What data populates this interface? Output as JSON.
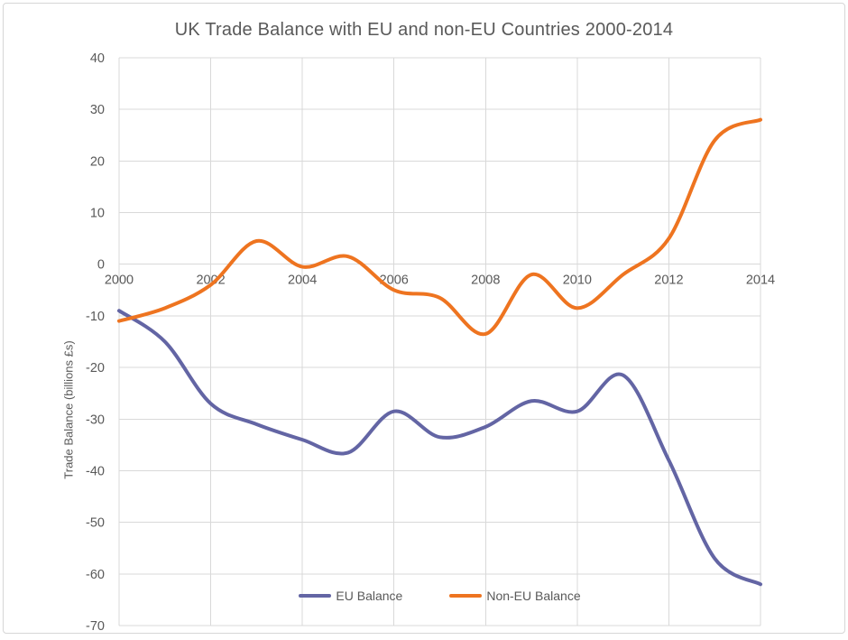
{
  "chart_data": {
    "type": "line",
    "title": "UK Trade Balance with EU and non-EU Countries 2000-2014",
    "xlabel": "",
    "ylabel": "Trade Balance (billions £s)",
    "x": [
      2000,
      2001,
      2002,
      2003,
      2004,
      2005,
      2006,
      2007,
      2008,
      2009,
      2010,
      2011,
      2012,
      2013,
      2014
    ],
    "series": [
      {
        "name": "EU Balance",
        "color": "#6365A4",
        "values": [
          -9,
          -15,
          -27,
          -31,
          -34,
          -36.5,
          -28.5,
          -33.5,
          -31.5,
          -26.5,
          -28.5,
          -21.5,
          -38,
          -57,
          -62
        ]
      },
      {
        "name": "Non-EU Balance",
        "color": "#EE7420",
        "values": [
          -11,
          -8.5,
          -4,
          4.5,
          -0.5,
          1.5,
          -5,
          -6.5,
          -13.5,
          -2,
          -8.5,
          -2,
          5,
          24,
          28
        ]
      }
    ],
    "ylim": [
      -70,
      40
    ],
    "ytick_step": 10,
    "yticks": [
      40,
      30,
      20,
      10,
      0,
      -10,
      -20,
      -30,
      -40,
      -50,
      -60,
      -70
    ],
    "xticks": [
      2000,
      2002,
      2004,
      2006,
      2008,
      2010,
      2012,
      2014
    ],
    "grid": true,
    "smooth": true,
    "legend_position": "bottom-inside",
    "gridline_color": "#D9D9D9",
    "text_color": "#595959",
    "background_color": "#FFFFFF",
    "frame_border_color": "#D6D6D6"
  }
}
